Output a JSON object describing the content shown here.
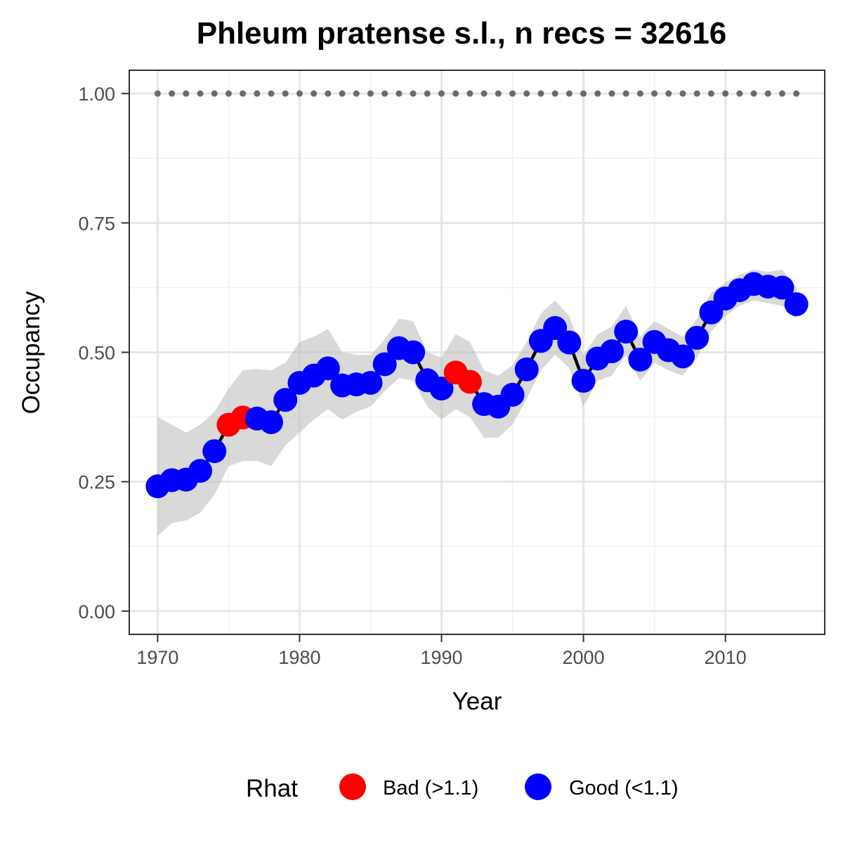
{
  "chart_data": {
    "type": "line",
    "title": "Phleum pratense s.l., n recs = 32616",
    "xlabel": "Year",
    "ylabel": "Occupancy",
    "xlim": [
      1968,
      2017
    ],
    "ylim": [
      -0.045,
      1.045
    ],
    "x_ticks": [
      1970,
      1980,
      1990,
      2000,
      2010
    ],
    "x_tick_labels": [
      "1970",
      "1980",
      "1990",
      "2000",
      "2010"
    ],
    "y_ticks": [
      0,
      0.25,
      0.5,
      0.75,
      1.0
    ],
    "y_tick_labels": [
      "0.00",
      "0.25",
      "0.50",
      "0.75",
      "1.00"
    ],
    "grid": true,
    "legend": {
      "title": "Rhat",
      "position": "bottom",
      "entries": [
        {
          "key": "bad",
          "label": "Bad (>1.1)",
          "color": "#ff0000"
        },
        {
          "key": "good",
          "label": "Good (<1.1)",
          "color": "#0000ff"
        }
      ]
    },
    "reference_line": {
      "y": 1.0,
      "x_range": [
        1970,
        2015
      ],
      "style": "dotted",
      "color": "#6b6b6b"
    },
    "years": [
      1970,
      1971,
      1972,
      1973,
      1974,
      1975,
      1976,
      1977,
      1978,
      1979,
      1980,
      1981,
      1982,
      1983,
      1984,
      1985,
      1986,
      1987,
      1988,
      1989,
      1990,
      1991,
      1992,
      1993,
      1994,
      1995,
      1996,
      1997,
      1998,
      1999,
      2000,
      2001,
      2002,
      2003,
      2004,
      2005,
      2006,
      2007,
      2008,
      2009,
      2010,
      2011,
      2012,
      2013,
      2014,
      2015
    ],
    "occupancy": [
      0.241,
      0.253,
      0.254,
      0.271,
      0.309,
      0.36,
      0.374,
      0.372,
      0.365,
      0.408,
      0.441,
      0.455,
      0.469,
      0.436,
      0.438,
      0.441,
      0.477,
      0.508,
      0.5,
      0.446,
      0.43,
      0.461,
      0.443,
      0.4,
      0.395,
      0.418,
      0.467,
      0.522,
      0.547,
      0.519,
      0.445,
      0.488,
      0.502,
      0.54,
      0.486,
      0.52,
      0.504,
      0.492,
      0.528,
      0.577,
      0.604,
      0.62,
      0.632,
      0.627,
      0.625,
      0.593
    ],
    "lower": [
      0.145,
      0.17,
      0.175,
      0.19,
      0.225,
      0.28,
      0.29,
      0.29,
      0.28,
      0.32,
      0.345,
      0.37,
      0.39,
      0.37,
      0.385,
      0.395,
      0.425,
      0.45,
      0.445,
      0.395,
      0.37,
      0.39,
      0.375,
      0.335,
      0.335,
      0.36,
      0.41,
      0.465,
      0.495,
      0.47,
      0.395,
      0.445,
      0.455,
      0.495,
      0.445,
      0.48,
      0.465,
      0.455,
      0.49,
      0.54,
      0.57,
      0.59,
      0.6,
      0.595,
      0.59,
      0.565
    ],
    "upper": [
      0.375,
      0.36,
      0.345,
      0.36,
      0.385,
      0.43,
      0.465,
      0.468,
      0.465,
      0.48,
      0.52,
      0.53,
      0.545,
      0.5,
      0.495,
      0.495,
      0.525,
      0.565,
      0.56,
      0.5,
      0.49,
      0.535,
      0.52,
      0.465,
      0.455,
      0.475,
      0.52,
      0.575,
      0.6,
      0.57,
      0.495,
      0.535,
      0.55,
      0.59,
      0.53,
      0.56,
      0.545,
      0.53,
      0.565,
      0.615,
      0.635,
      0.65,
      0.66,
      0.655,
      0.66,
      0.625
    ],
    "rhat_class": [
      "good",
      "good",
      "good",
      "good",
      "good",
      "bad",
      "bad",
      "good",
      "good",
      "good",
      "good",
      "good",
      "good",
      "good",
      "good",
      "good",
      "good",
      "good",
      "good",
      "good",
      "good",
      "bad",
      "bad",
      "good",
      "good",
      "good",
      "good",
      "good",
      "good",
      "good",
      "good",
      "good",
      "good",
      "good",
      "good",
      "good",
      "good",
      "good",
      "good",
      "good",
      "good",
      "good",
      "good",
      "good",
      "good",
      "good"
    ]
  }
}
